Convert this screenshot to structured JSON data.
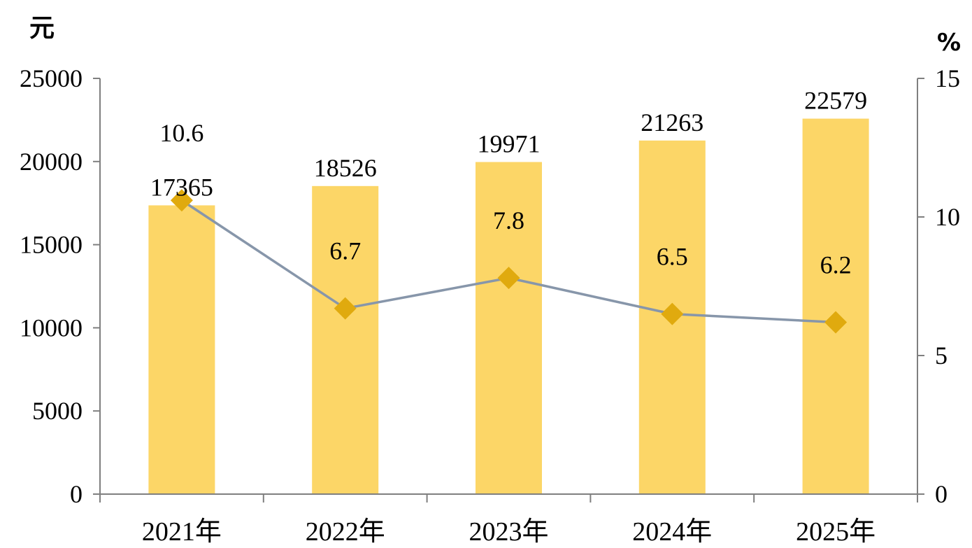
{
  "chart_data": {
    "type": "bar",
    "categories": [
      "2021年",
      "2022年",
      "2023年",
      "2024年",
      "2025年"
    ],
    "series": [
      {
        "type": "bar",
        "axis": "left",
        "values": [
          17365,
          18526,
          19971,
          21263,
          22579
        ],
        "labels": [
          "17365",
          "18526",
          "19971",
          "21263",
          "22579"
        ]
      },
      {
        "type": "line",
        "axis": "right",
        "values": [
          10.6,
          6.7,
          7.8,
          6.5,
          6.2
        ],
        "labels": [
          "10.6",
          "6.7",
          "7.8",
          "6.5",
          "6.2"
        ]
      }
    ],
    "y_left": {
      "unit": "元",
      "range": [
        0,
        25000
      ],
      "ticks": [
        "0",
        "5000",
        "10000",
        "15000",
        "20000",
        "25000"
      ]
    },
    "y_right": {
      "unit": "%",
      "range": [
        0,
        15
      ],
      "ticks": [
        "0",
        "5",
        "10",
        "15"
      ]
    },
    "grid": false,
    "legend": "none",
    "colors": {
      "bar": "#FCD667",
      "line": "#8796AA",
      "marker": "#E0AA0E",
      "axis": "#7F7F7F",
      "text": "#000000"
    }
  }
}
